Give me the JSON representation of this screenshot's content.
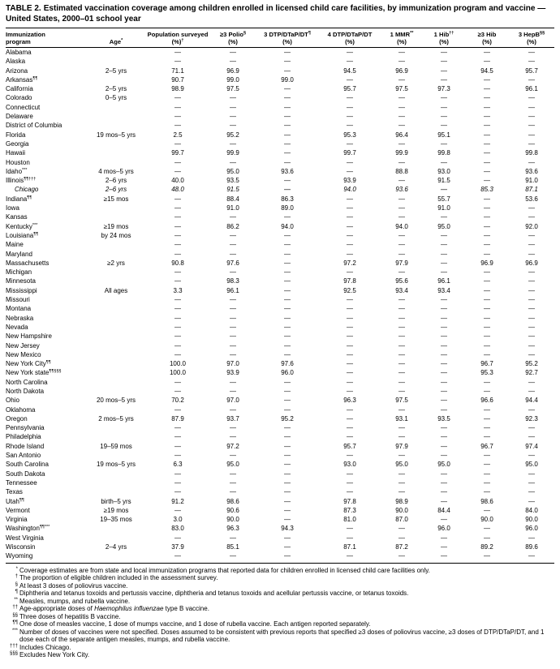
{
  "title": {
    "label": "TABLE 2.",
    "text": "Estimated vaccination coverage among children enrolled in licensed child care facilities, by immunization program and vaccine — United States, 2000–01 school year"
  },
  "table": {
    "columns": [
      {
        "id": "program",
        "top": "Immunization",
        "bottom": "program",
        "align": "left"
      },
      {
        "id": "age",
        "top": "",
        "bottom": "Age",
        "bottom_sup": "*",
        "align": "center"
      },
      {
        "id": "population-surveyed",
        "top": "Population surveyed",
        "bottom": "(%)",
        "bottom_sup": "†",
        "align": "center"
      },
      {
        "id": "polio-3",
        "top": "≥3 Polio",
        "top_sup": "§",
        "bottom": "(%)",
        "align": "center"
      },
      {
        "id": "dtp-3",
        "top": "3 DTP/DTaP/DT",
        "top_sup": "¶",
        "bottom": "(%)",
        "align": "center"
      },
      {
        "id": "dtp-4",
        "top": "4 DTP/DTaP/DT",
        "bottom": "(%)",
        "align": "center"
      },
      {
        "id": "mmr-1",
        "top": "1 MMR",
        "top_sup": "**",
        "bottom": "(%)",
        "align": "center"
      },
      {
        "id": "hib-1",
        "top": "1 Hib",
        "top_sup": "††",
        "bottom": "(%)",
        "align": "center"
      },
      {
        "id": "hib-3",
        "top": "≥3 Hib",
        "bottom": "(%)",
        "align": "center"
      },
      {
        "id": "hepb-3",
        "top": "3 HepB",
        "top_sup": "§§",
        "bottom": "(%)",
        "align": "center"
      }
    ],
    "rows": [
      {
        "program": "Alabama",
        "sup": "",
        "age": "",
        "values": [
          "—",
          "—",
          "—",
          "—",
          "—",
          "—",
          "—",
          "—"
        ]
      },
      {
        "program": "Alaska",
        "sup": "",
        "age": "",
        "values": [
          "—",
          "—",
          "—",
          "—",
          "—",
          "—",
          "—",
          "—"
        ]
      },
      {
        "program": "Arizona",
        "sup": "",
        "age": "2–5 yrs",
        "values": [
          "71.1",
          "96.9",
          "—",
          "94.5",
          "96.9",
          "—",
          "94.5",
          "95.7"
        ]
      },
      {
        "program": "Arkansas",
        "sup": "¶¶",
        "age": "",
        "values": [
          "90.7",
          "99.0",
          "99.0",
          "—",
          "—",
          "—",
          "—",
          "—"
        ]
      },
      {
        "program": "California",
        "sup": "",
        "age": "2–5 yrs",
        "values": [
          "98.9",
          "97.5",
          "—",
          "95.7",
          "97.5",
          "97.3",
          "—",
          "96.1"
        ]
      },
      {
        "program": "Colorado",
        "sup": "",
        "age": "0–5 yrs",
        "values": [
          "—",
          "—",
          "—",
          "—",
          "—",
          "—",
          "—",
          "—"
        ]
      },
      {
        "program": "Connecticut",
        "sup": "",
        "age": "",
        "values": [
          "—",
          "—",
          "—",
          "—",
          "—",
          "—",
          "—",
          "—"
        ]
      },
      {
        "program": "Delaware",
        "sup": "",
        "age": "",
        "values": [
          "—",
          "—",
          "—",
          "—",
          "—",
          "—",
          "—",
          "—"
        ]
      },
      {
        "program": "District of Columbia",
        "sup": "",
        "age": "",
        "values": [
          "—",
          "—",
          "—",
          "—",
          "—",
          "—",
          "—",
          "—"
        ]
      },
      {
        "program": "Florida",
        "sup": "",
        "age": "19 mos–5 yrs",
        "values": [
          "2.5",
          "95.2",
          "—",
          "95.3",
          "96.4",
          "95.1",
          "—",
          "—"
        ]
      },
      {
        "program": "Georgia",
        "sup": "",
        "age": "",
        "values": [
          "—",
          "—",
          "—",
          "—",
          "—",
          "—",
          "—",
          "—"
        ]
      },
      {
        "program": "Hawaii",
        "sup": "",
        "age": "",
        "values": [
          "99.7",
          "99.9",
          "—",
          "99.7",
          "99.9",
          "99.8",
          "—",
          "99.8"
        ]
      },
      {
        "program": "Houston",
        "sup": "",
        "age": "",
        "values": [
          "—",
          "—",
          "—",
          "—",
          "—",
          "—",
          "—",
          "—"
        ]
      },
      {
        "program": "Idaho",
        "sup": "***",
        "age": "4 mos–5 yrs",
        "values": [
          "—",
          "95.0",
          "93.6",
          "—",
          "88.8",
          "93.0",
          "—",
          "93.6"
        ]
      },
      {
        "program": "Illinois",
        "sup": "¶¶†††",
        "age": "2–6 yrs",
        "values": [
          "40.0",
          "93.5",
          "—",
          "93.9",
          "—",
          "91.5",
          "—",
          "91.0"
        ]
      },
      {
        "program": "Chicago",
        "sup": "",
        "age": "2–6 yrs",
        "italic": true,
        "indent": true,
        "values": [
          "48.0",
          "91.5",
          "—",
          "94.0",
          "93.6",
          "—",
          "85.3",
          "87.1"
        ]
      },
      {
        "program": "Indiana",
        "sup": "¶¶",
        "age": "≥15 mos",
        "values": [
          "—",
          "88.4",
          "86.3",
          "—",
          "—",
          "55.7",
          "—",
          "53.6"
        ]
      },
      {
        "program": "Iowa",
        "sup": "",
        "age": "",
        "values": [
          "—",
          "91.0",
          "89.0",
          "—",
          "—",
          "91.0",
          "—",
          "—"
        ]
      },
      {
        "program": "Kansas",
        "sup": "",
        "age": "",
        "values": [
          "—",
          "—",
          "—",
          "—",
          "—",
          "—",
          "—",
          "—"
        ]
      },
      {
        "program": "Kentucky",
        "sup": "***",
        "age": "≥19 mos",
        "values": [
          "—",
          "86.2",
          "94.0",
          "—",
          "94.0",
          "95.0",
          "—",
          "92.0"
        ]
      },
      {
        "program": "Louisiana",
        "sup": "¶¶",
        "age": "by 24 mos",
        "values": [
          "—",
          "—",
          "—",
          "—",
          "—",
          "—",
          "—",
          "—"
        ]
      },
      {
        "program": "Maine",
        "sup": "",
        "age": "",
        "values": [
          "—",
          "—",
          "—",
          "—",
          "—",
          "—",
          "—",
          "—"
        ]
      },
      {
        "program": "Maryland",
        "sup": "",
        "age": "",
        "values": [
          "—",
          "—",
          "—",
          "—",
          "—",
          "—",
          "—",
          "—"
        ]
      },
      {
        "program": "Massachusetts",
        "sup": "",
        "age": "≥2 yrs",
        "values": [
          "90.8",
          "97.6",
          "—",
          "97.2",
          "97.9",
          "—",
          "96.9",
          "96.9"
        ]
      },
      {
        "program": "Michigan",
        "sup": "",
        "age": "",
        "values": [
          "—",
          "—",
          "—",
          "—",
          "—",
          "—",
          "—",
          "—"
        ]
      },
      {
        "program": "Minnesota",
        "sup": "",
        "age": "",
        "values": [
          "—",
          "98.3",
          "—",
          "97.8",
          "95.6",
          "96.1",
          "—",
          "—"
        ]
      },
      {
        "program": "Mississippi",
        "sup": "",
        "age": "All ages",
        "values": [
          "3.3",
          "96.1",
          "—",
          "92.5",
          "93.4",
          "93.4",
          "—",
          "—"
        ]
      },
      {
        "program": "Missouri",
        "sup": "",
        "age": "",
        "values": [
          "—",
          "—",
          "—",
          "—",
          "—",
          "—",
          "—",
          "—"
        ]
      },
      {
        "program": "Montana",
        "sup": "",
        "age": "",
        "values": [
          "—",
          "—",
          "—",
          "—",
          "—",
          "—",
          "—",
          "—"
        ]
      },
      {
        "program": "Nebraska",
        "sup": "",
        "age": "",
        "values": [
          "—",
          "—",
          "—",
          "—",
          "—",
          "—",
          "—",
          "—"
        ]
      },
      {
        "program": "Nevada",
        "sup": "",
        "age": "",
        "values": [
          "—",
          "—",
          "—",
          "—",
          "—",
          "—",
          "—",
          "—"
        ]
      },
      {
        "program": "New Hampshire",
        "sup": "",
        "age": "",
        "values": [
          "—",
          "—",
          "—",
          "—",
          "—",
          "—",
          "—",
          "—"
        ]
      },
      {
        "program": "New Jersey",
        "sup": "",
        "age": "",
        "values": [
          "—",
          "—",
          "—",
          "—",
          "—",
          "—",
          "—",
          "—"
        ]
      },
      {
        "program": "New Mexico",
        "sup": "",
        "age": "",
        "values": [
          "—",
          "—",
          "—",
          "—",
          "—",
          "—",
          "—",
          "—"
        ]
      },
      {
        "program": "New York City",
        "sup": "¶¶",
        "age": "",
        "values": [
          "100.0",
          "97.0",
          "97.6",
          "—",
          "—",
          "—",
          "96.7",
          "95.2"
        ]
      },
      {
        "program": "New York state",
        "sup": "¶¶§§§",
        "age": "",
        "values": [
          "100.0",
          "93.9",
          "96.0",
          "—",
          "—",
          "—",
          "95.3",
          "92.7"
        ]
      },
      {
        "program": "North Carolina",
        "sup": "",
        "age": "",
        "values": [
          "—",
          "—",
          "—",
          "—",
          "—",
          "—",
          "—",
          "—"
        ]
      },
      {
        "program": "North Dakota",
        "sup": "",
        "age": "",
        "values": [
          "—",
          "—",
          "—",
          "—",
          "—",
          "—",
          "—",
          "—"
        ]
      },
      {
        "program": "Ohio",
        "sup": "",
        "age": "20 mos–5 yrs",
        "values": [
          "70.2",
          "97.0",
          "—",
          "96.3",
          "97.5",
          "—",
          "96.6",
          "94.4"
        ]
      },
      {
        "program": "Oklahoma",
        "sup": "",
        "age": "",
        "values": [
          "—",
          "—",
          "—",
          "—",
          "—",
          "—",
          "—",
          "—"
        ]
      },
      {
        "program": "Oregon",
        "sup": "",
        "age": "2 mos–5 yrs",
        "values": [
          "87.9",
          "93.7",
          "95.2",
          "—",
          "93.1",
          "93.5",
          "—",
          "92.3"
        ]
      },
      {
        "program": "Pennsylvania",
        "sup": "",
        "age": "",
        "values": [
          "—",
          "—",
          "—",
          "—",
          "—",
          "—",
          "—",
          "—"
        ]
      },
      {
        "program": "Philadelphia",
        "sup": "",
        "age": "",
        "values": [
          "—",
          "—",
          "—",
          "—",
          "—",
          "—",
          "—",
          "—"
        ]
      },
      {
        "program": "Rhode Island",
        "sup": "",
        "age": "19–59 mos",
        "values": [
          "—",
          "97.2",
          "—",
          "95.7",
          "97.9",
          "—",
          "96.7",
          "97.4"
        ]
      },
      {
        "program": "San Antonio",
        "sup": "",
        "age": "",
        "values": [
          "—",
          "—",
          "—",
          "—",
          "—",
          "—",
          "—",
          "—"
        ]
      },
      {
        "program": "South Carolina",
        "sup": "",
        "age": "19 mos–5 yrs",
        "values": [
          "6.3",
          "95.0",
          "—",
          "93.0",
          "95.0",
          "95.0",
          "—",
          "95.0"
        ]
      },
      {
        "program": "South Dakota",
        "sup": "",
        "age": "",
        "values": [
          "—",
          "—",
          "—",
          "—",
          "—",
          "—",
          "—",
          "—"
        ]
      },
      {
        "program": "Tennessee",
        "sup": "",
        "age": "",
        "values": [
          "—",
          "—",
          "—",
          "—",
          "—",
          "—",
          "—",
          "—"
        ]
      },
      {
        "program": "Texas",
        "sup": "",
        "age": "",
        "values": [
          "—",
          "—",
          "—",
          "—",
          "—",
          "—",
          "—",
          "—"
        ]
      },
      {
        "program": "Utah",
        "sup": "¶¶",
        "age": "birth–5 yrs",
        "values": [
          "91.2",
          "98.6",
          "—",
          "97.8",
          "98.9",
          "—",
          "98.6",
          "—"
        ]
      },
      {
        "program": "Vermont",
        "sup": "",
        "age": "≥19 mos",
        "values": [
          "—",
          "90.6",
          "—",
          "87.3",
          "90.0",
          "84.4",
          "—",
          "84.0"
        ]
      },
      {
        "program": "Virginia",
        "sup": "",
        "age": "19–35 mos",
        "values": [
          "3.0",
          "90.0",
          "—",
          "81.0",
          "87.0",
          "—",
          "90.0",
          "90.0"
        ]
      },
      {
        "program": "Washington",
        "sup": "¶¶***",
        "age": "",
        "values": [
          "83.0",
          "96.3",
          "94.3",
          "—",
          "—",
          "96.0",
          "—",
          "96.0"
        ]
      },
      {
        "program": "West Virginia",
        "sup": "",
        "age": "",
        "values": [
          "—",
          "—",
          "—",
          "—",
          "—",
          "—",
          "—",
          "—"
        ]
      },
      {
        "program": "Wisconsin",
        "sup": "",
        "age": "2–4 yrs",
        "values": [
          "37.9",
          "85.1",
          "—",
          "87.1",
          "87.2",
          "—",
          "89.2",
          "89.6"
        ]
      },
      {
        "program": "Wyoming",
        "sup": "",
        "age": "",
        "values": [
          "—",
          "—",
          "—",
          "—",
          "—",
          "—",
          "—",
          "—"
        ]
      }
    ]
  },
  "footnotes": [
    {
      "sym": "*",
      "parts": [
        {
          "t": "Coverage estimates are from state and local immunization programs that reported data for children enrolled in licensed child care facilities only."
        }
      ]
    },
    {
      "sym": "†",
      "parts": [
        {
          "t": "The proportion of eligible children included in the assessment survey."
        }
      ]
    },
    {
      "sym": "§",
      "parts": [
        {
          "t": "At least 3 doses of poliovirus vaccine."
        }
      ]
    },
    {
      "sym": "¶",
      "parts": [
        {
          "t": "Diphtheria and tetanus toxoids and pertussis vaccine, diphtheria and tetanus toxoids and acellular pertussis vaccine, or tetanus toxoids."
        }
      ]
    },
    {
      "sym": "**",
      "parts": [
        {
          "t": "Measles, mumps, and rubella vaccine."
        }
      ]
    },
    {
      "sym": "††",
      "parts": [
        {
          "t": "Age-appropriate doses of "
        },
        {
          "t": "Haemophilus influenzae",
          "i": true
        },
        {
          "t": " type B vaccine."
        }
      ]
    },
    {
      "sym": "§§",
      "parts": [
        {
          "t": "Three doses of hepatitis B vaccine."
        }
      ]
    },
    {
      "sym": "¶¶",
      "parts": [
        {
          "t": "One dose of measles vaccine, 1 dose of mumps vaccine, and 1 dose of rubella vaccine. Each antigen reported separately."
        }
      ]
    },
    {
      "sym": "***",
      "parts": [
        {
          "t": "Number of doses of vaccines were not specified. Doses assumed to be consistent with previous reports that specified ≥3 doses of poliovirus vaccine, ≥3 doses of DTP/DTaP/DT, and 1 dose each of the separate antigen measles, mumps, and rubella vaccine."
        }
      ]
    },
    {
      "sym": "†††",
      "parts": [
        {
          "t": "Includes Chicago."
        }
      ]
    },
    {
      "sym": "§§§",
      "parts": [
        {
          "t": "Excludes New York City."
        }
      ]
    }
  ]
}
